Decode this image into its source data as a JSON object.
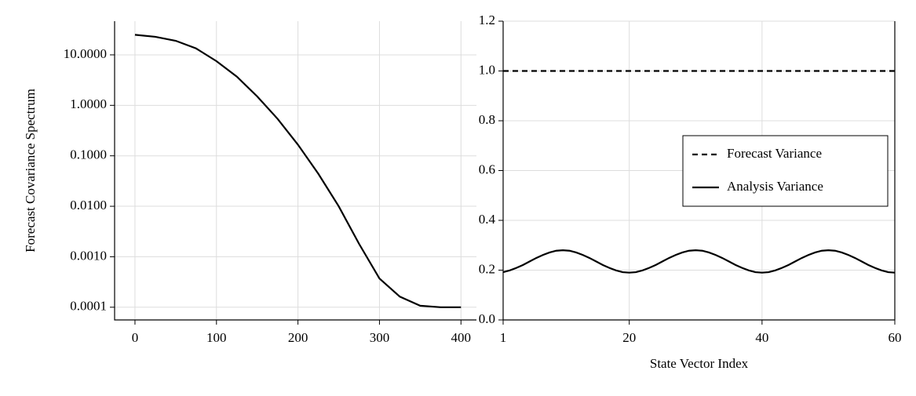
{
  "chart_data": [
    {
      "type": "line",
      "ylabel": "Forecast Covariance Spectrum",
      "yscale": "log",
      "grid": true,
      "xlim": [
        -25,
        419
      ],
      "ylim": [
        5.6e-05,
        46.5
      ],
      "xticks": [
        0,
        100,
        200,
        300,
        400
      ],
      "yticks": [
        {
          "value": 0.0001,
          "label": "0.0001"
        },
        {
          "value": 0.001,
          "label": "0.0010"
        },
        {
          "value": 0.01,
          "label": "0.0100"
        },
        {
          "value": 0.1,
          "label": "0.1000"
        },
        {
          "value": 1,
          "label": "1.0000"
        },
        {
          "value": 10,
          "label": "10.0000"
        }
      ],
      "series": [
        {
          "color": "#000000",
          "x": [
            0,
            25,
            50,
            75,
            100,
            125,
            150,
            175,
            200,
            225,
            250,
            275,
            300,
            325,
            350,
            375,
            400
          ],
          "values": [
            25,
            22.8,
            19,
            13.4,
            7.5,
            3.7,
            1.5,
            0.54,
            0.166,
            0.044,
            0.01,
            0.0018,
            0.00037,
            0.000162,
            0.000107,
            0.0001,
            0.0001
          ]
        }
      ]
    },
    {
      "type": "line",
      "xlabel": "State Vector Index",
      "grid": true,
      "legend": "right",
      "xlim": [
        1,
        60
      ],
      "ylim": [
        0,
        1.2
      ],
      "xticks": [
        1,
        20,
        40,
        60
      ],
      "yticks": [
        {
          "value": 0,
          "label": "0.0"
        },
        0.2,
        0.4,
        0.6,
        0.8,
        {
          "value": 1,
          "label": "1.0"
        },
        1.2
      ],
      "series": [
        {
          "name": "Forecast Variance",
          "color": "#000000",
          "dash": true,
          "x": [
            1,
            60
          ],
          "values": [
            1,
            1
          ]
        },
        {
          "name": "Analysis Variance",
          "color": "#000000",
          "dash": false,
          "x": [
            1,
            2,
            3,
            4,
            5,
            6,
            7,
            8,
            9,
            10,
            11,
            12,
            13,
            14,
            15,
            16,
            17,
            18,
            19,
            20,
            21,
            22,
            23,
            24,
            25,
            26,
            27,
            28,
            29,
            30,
            31,
            32,
            33,
            34,
            35,
            36,
            37,
            38,
            39,
            40,
            41,
            42,
            43,
            44,
            45,
            46,
            47,
            48,
            49,
            50,
            51,
            52,
            53,
            54,
            55,
            56,
            57,
            58,
            59,
            60
          ],
          "values": [
            0.192,
            0.199,
            0.209,
            0.221,
            0.235,
            0.249,
            0.261,
            0.271,
            0.278,
            0.28,
            0.278,
            0.271,
            0.261,
            0.249,
            0.235,
            0.221,
            0.209,
            0.199,
            0.192,
            0.19,
            0.192,
            0.199,
            0.209,
            0.221,
            0.235,
            0.249,
            0.261,
            0.271,
            0.278,
            0.28,
            0.278,
            0.271,
            0.261,
            0.249,
            0.235,
            0.221,
            0.209,
            0.199,
            0.192,
            0.19,
            0.192,
            0.199,
            0.209,
            0.221,
            0.235,
            0.249,
            0.261,
            0.271,
            0.278,
            0.28,
            0.278,
            0.271,
            0.261,
            0.249,
            0.235,
            0.221,
            0.209,
            0.199,
            0.192,
            0.19
          ]
        }
      ]
    }
  ]
}
